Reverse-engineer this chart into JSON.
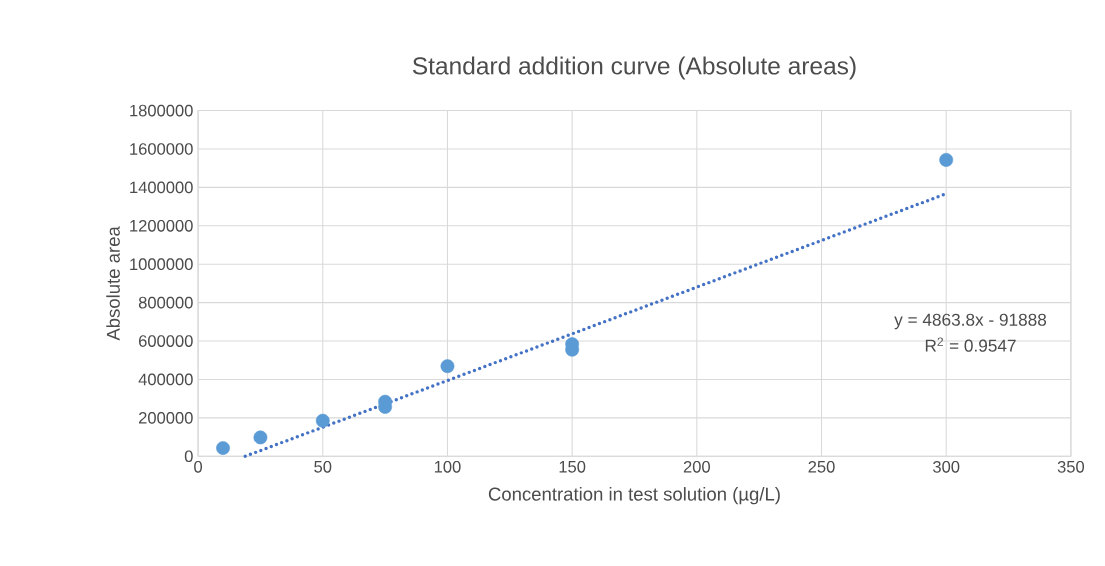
{
  "chart_data": {
    "type": "scatter",
    "title": "Standard addition curve (Absolute areas)",
    "xlabel": "Concentration in test solution (µg/L)",
    "ylabel": "Absolute area",
    "xlim": [
      0,
      350
    ],
    "xticks": [
      0,
      50,
      100,
      150,
      200,
      250,
      300,
      350
    ],
    "ylim": [
      0,
      1800000
    ],
    "yticks": [
      0,
      200000,
      400000,
      600000,
      800000,
      1000000,
      1200000,
      1400000,
      1600000,
      1800000
    ],
    "grid": true,
    "series": [
      {
        "color": "#5b9bd5",
        "marker": "circle",
        "x": [
          10,
          25,
          50,
          75,
          75,
          100,
          150,
          150,
          300
        ],
        "values": [
          43000,
          98000,
          185000,
          284000,
          257000,
          469000,
          584000,
          555000,
          1543000
        ]
      },
      {
        "type": "line",
        "color": "#4472c4",
        "marker": "none",
        "line_style": "dotted",
        "x": [
          18.9,
          300
        ],
        "values": [
          0,
          1367000
        ]
      }
    ],
    "annotations": [
      "y = 4863.8x - 91888",
      "R$^{2}$ = 0.9547"
    ]
  }
}
